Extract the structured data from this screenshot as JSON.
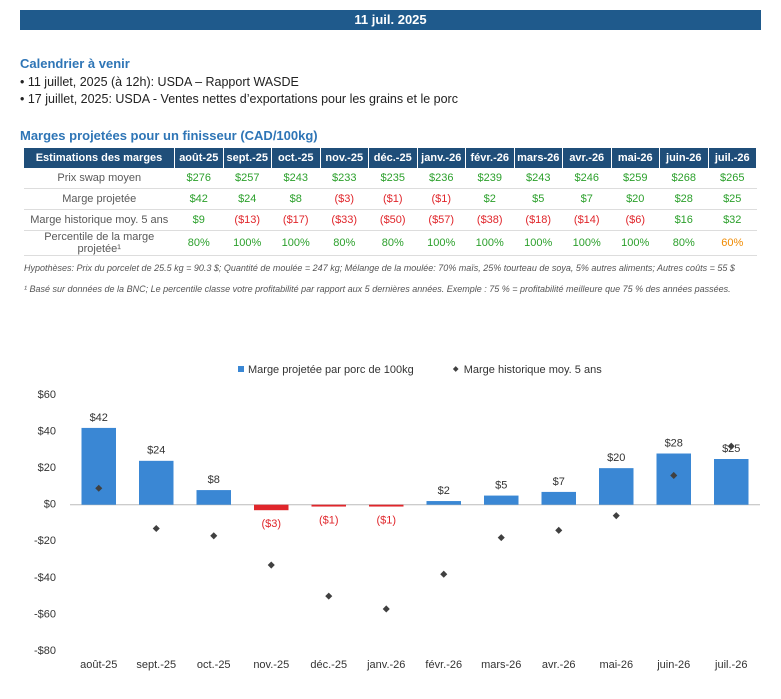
{
  "header": {
    "date": "11 juil. 2025"
  },
  "calendar": {
    "title": "Calendrier à venir",
    "items": [
      "• 11 juillet, 2025 (à 12h): USDA – Rapport WASDE",
      "• 17 juillet, 2025: USDA - Ventes nettes d’exportations pour les grains et le porc"
    ]
  },
  "table": {
    "title": "Marges projetées pour un finisseur (CAD/100kg)",
    "header": [
      "Estimations des marges",
      "août-25",
      "sept.-25",
      "oct.-25",
      "nov.-25",
      "déc.-25",
      "janv.-26",
      "févr.-26",
      "mars-26",
      "avr.-26",
      "mai-26",
      "juin-26",
      "juil.-26"
    ],
    "rows": [
      [
        "Prix swap moyen",
        "$276",
        "$257",
        "$243",
        "$233",
        "$235",
        "$236",
        "$239",
        "$243",
        "$246",
        "$259",
        "$268",
        "$265"
      ],
      [
        "Marge projetée",
        "$42",
        "$24",
        "$8",
        "($3)",
        "($1)",
        "($1)",
        "$2",
        "$5",
        "$7",
        "$20",
        "$28",
        "$25"
      ],
      [
        "Marge historique moy. 5 ans",
        "$9",
        "($13)",
        "($17)",
        "($33)",
        "($50)",
        "($57)",
        "($38)",
        "($18)",
        "($14)",
        "($6)",
        "$16",
        "$32"
      ],
      [
        "Percentile de la marge projetée¹",
        "80%",
        "100%",
        "100%",
        "80%",
        "80%",
        "100%",
        "100%",
        "100%",
        "100%",
        "100%",
        "80%",
        "60%"
      ]
    ],
    "notes": [
      "Hypothèses: Prix du porcelet de 25.5 kg = 90.3 $; Quantité de moulée = 247 kg; Mélange de la moulée: 70% maïs, 25% tourteau de soya, 5% autres aliments; Autres coûts = 55 $",
      "¹ Basé sur données de la BNC; Le percentile classe votre profitabilité par rapport aux 5 dernières années. Exemple : 75 % = profitabilité meilleure que 75 % des années passées."
    ]
  },
  "chart_data": {
    "type": "bar",
    "categories": [
      "août-25",
      "sept.-25",
      "oct.-25",
      "nov.-25",
      "déc.-25",
      "janv.-26",
      "févr.-26",
      "mars-26",
      "avr.-26",
      "mai-26",
      "juin-26",
      "juil.-26"
    ],
    "series": [
      {
        "name": "Marge projetée par porc de 100kg",
        "type": "bar",
        "color": "#3a87d4",
        "negative_color": "#e0262b",
        "values": [
          42,
          24,
          8,
          -3,
          -1,
          -1,
          2,
          5,
          7,
          20,
          28,
          25
        ],
        "value_labels": [
          "$42",
          "$24",
          "$8",
          "($3)",
          "($1)",
          "($1)",
          "$2",
          "$5",
          "$7",
          "$20",
          "$28",
          "$25"
        ]
      },
      {
        "name": "Marge historique moy. 5 ans",
        "type": "scatter",
        "color": "#404040",
        "values": [
          9,
          -13,
          -17,
          -33,
          -50,
          -57,
          -38,
          -18,
          -14,
          -6,
          16,
          32
        ]
      }
    ],
    "ylim": [
      -80,
      60
    ],
    "yticks": [
      {
        "value": 60,
        "label": "$60"
      },
      {
        "value": 40,
        "label": "$40"
      },
      {
        "value": 20,
        "label": "$20"
      },
      {
        "value": 0,
        "label": "$0"
      },
      {
        "value": -20,
        "label": "-$20"
      },
      {
        "value": -40,
        "label": "-$40"
      },
      {
        "value": -60,
        "label": "-$60"
      },
      {
        "value": -80,
        "label": "-$80"
      }
    ],
    "grid": false
  }
}
